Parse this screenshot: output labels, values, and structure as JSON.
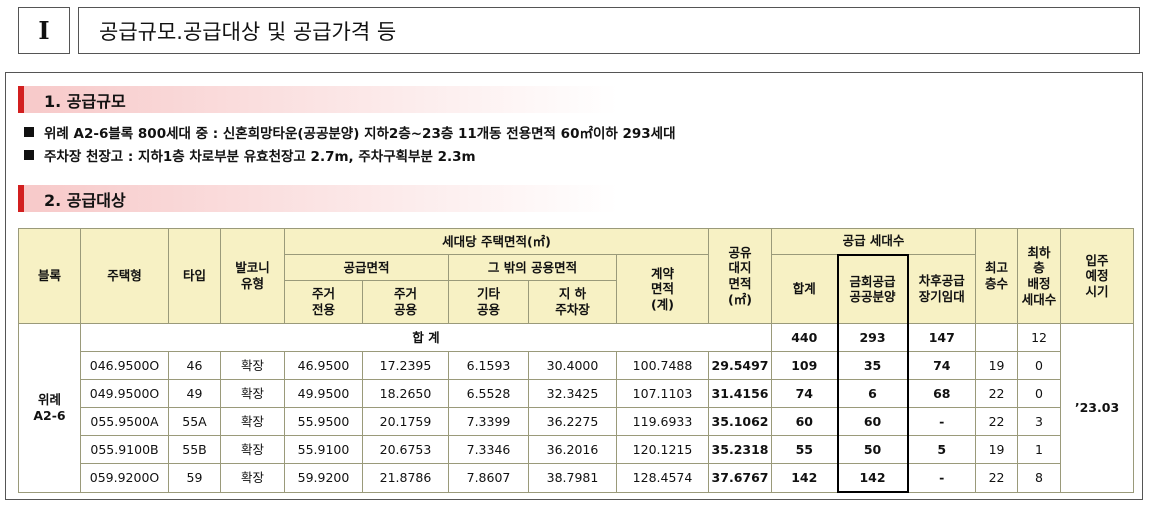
{
  "header": {
    "roman": "I",
    "title": "공급규모.공급대상 및 공급가격 등"
  },
  "sections": [
    {
      "title": "1. 공급규모",
      "bullets": [
        "위례 A2-6블록 800세대 중 : 신혼희망타운(공공분양) 지하2층~23층 11개동 전용면적 60㎡이하 293세대",
        "주차장 천장고 : 지하1층 차로부분 유효천장고 2.7m, 주차구획부분 2.3m"
      ]
    },
    {
      "title": "2. 공급대상"
    }
  ],
  "table": {
    "header_rows": [
      [
        "블록",
        "주택형",
        "타입",
        "발코니\n유형",
        "세대당 주택면적(㎡)",
        "공유\n대지\n면적\n(㎡)",
        "공급 세대수",
        "최고\n층수",
        "최하\n층\n배정\n세대수",
        "입주\n예정\n시기"
      ],
      [
        "공급면적",
        "그 밖의 공용면적",
        "계약\n면적\n(계)",
        "합계",
        "금회공급\n공공분양",
        "차후공급\n장기임대"
      ],
      [
        "주거\n전용",
        "주거\n공용",
        "기타\n공용",
        "지 하\n주차장"
      ]
    ],
    "block": "위례\nA2-6",
    "total": {
      "label": "합 계",
      "total": "440",
      "current": "293",
      "later": "147",
      "lowest": "12"
    },
    "move_in": "’23.03",
    "rows": [
      [
        "046.9500O",
        "46",
        "확장",
        "46.9500",
        "17.2395",
        "6.1593",
        "30.4000",
        "100.7488",
        "29.5497",
        "109",
        "35",
        "74",
        "19",
        "0"
      ],
      [
        "049.9500O",
        "49",
        "확장",
        "49.9500",
        "18.2650",
        "6.5528",
        "32.3425",
        "107.1103",
        "31.4156",
        "74",
        "6",
        "68",
        "22",
        "0"
      ],
      [
        "055.9500A",
        "55A",
        "확장",
        "55.9500",
        "20.1759",
        "7.3399",
        "36.2275",
        "119.6933",
        "35.1062",
        "60",
        "60",
        "-",
        "22",
        "3"
      ],
      [
        "055.9100B",
        "55B",
        "확장",
        "55.9100",
        "20.6753",
        "7.3346",
        "36.2016",
        "120.1215",
        "35.2318",
        "55",
        "50",
        "5",
        "19",
        "1"
      ],
      [
        "059.9200O",
        "59",
        "확장",
        "59.9200",
        "21.8786",
        "7.8607",
        "38.7981",
        "128.4574",
        "37.6767",
        "142",
        "142",
        "-",
        "22",
        "8"
      ]
    ]
  }
}
